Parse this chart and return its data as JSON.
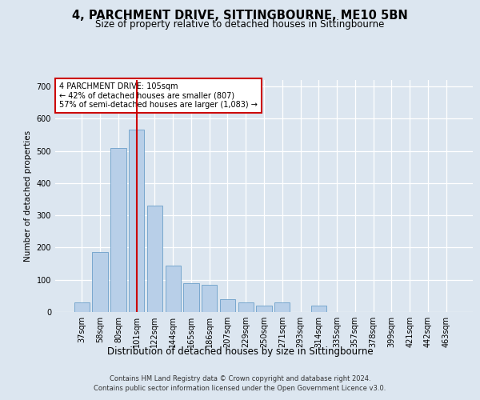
{
  "title": "4, PARCHMENT DRIVE, SITTINGBOURNE, ME10 5BN",
  "subtitle": "Size of property relative to detached houses in Sittingbourne",
  "xlabel": "Distribution of detached houses by size in Sittingbourne",
  "ylabel": "Number of detached properties",
  "categories": [
    "37sqm",
    "58sqm",
    "80sqm",
    "101sqm",
    "122sqm",
    "144sqm",
    "165sqm",
    "186sqm",
    "207sqm",
    "229sqm",
    "250sqm",
    "271sqm",
    "293sqm",
    "314sqm",
    "335sqm",
    "357sqm",
    "378sqm",
    "399sqm",
    "421sqm",
    "442sqm",
    "463sqm"
  ],
  "values": [
    30,
    185,
    510,
    565,
    330,
    145,
    90,
    85,
    40,
    30,
    20,
    30,
    0,
    20,
    0,
    0,
    0,
    0,
    0,
    0,
    0
  ],
  "bar_color": "#b8cfe8",
  "bar_edge_color": "#6b9fc9",
  "background_color": "#dce6f0",
  "grid_color": "#ffffff",
  "vline_x_index": 3.5,
  "annotation_text": "4 PARCHMENT DRIVE: 105sqm\n← 42% of detached houses are smaller (807)\n57% of semi-detached houses are larger (1,083) →",
  "annotation_box_color": "#ffffff",
  "annotation_box_edge": "#cc0000",
  "vline_color": "#cc0000",
  "footer": "Contains HM Land Registry data © Crown copyright and database right 2024.\nContains public sector information licensed under the Open Government Licence v3.0.",
  "ylim": [
    0,
    720
  ],
  "yticks": [
    0,
    100,
    200,
    300,
    400,
    500,
    600,
    700
  ],
  "title_fontsize": 10.5,
  "subtitle_fontsize": 8.5,
  "xlabel_fontsize": 8.5,
  "ylabel_fontsize": 7.5,
  "tick_fontsize": 7,
  "annot_fontsize": 7,
  "footer_fontsize": 6
}
